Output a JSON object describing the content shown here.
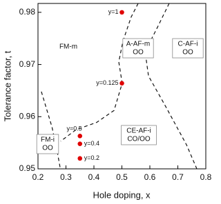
{
  "chart_data": {
    "type": "scatter",
    "xlabel": "Hole doping, x",
    "ylabel": "Tolerance factor, t",
    "xlim": [
      0.2,
      0.8
    ],
    "xticks": [
      0.2,
      0.3,
      0.4,
      0.5,
      0.6,
      0.7,
      0.8
    ],
    "ylim": [
      0.95,
      0.9817
    ],
    "yticks": [
      0.95,
      0.96,
      0.97,
      0.98
    ],
    "series": [
      {
        "color": "#e00000",
        "x": [
          0.5,
          0.5,
          0.35,
          0.35,
          0.35
        ],
        "values": [
          0.98,
          0.9664,
          0.9563,
          0.9548,
          0.952
        ],
        "labels": [
          "y=1",
          "y=0.125",
          "y=0.5",
          "y=0.4",
          "y=0.2"
        ]
      }
    ],
    "boundaries": [
      {
        "x": [
          0.212,
          0.25,
          0.27,
          0.28
        ],
        "values": [
          0.9648,
          0.958,
          0.953,
          0.95
        ]
      },
      {
        "x": [
          0.558,
          0.533,
          0.504,
          0.489,
          0.501,
          0.472,
          0.41,
          0.336,
          0.281
        ],
        "values": [
          0.9817,
          0.9791,
          0.9745,
          0.9705,
          0.9664,
          0.9612,
          0.9589,
          0.9575,
          0.9553
        ]
      },
      {
        "x": [
          0.669,
          0.627,
          0.583,
          0.595,
          0.657,
          0.731,
          0.768
        ],
        "values": [
          0.9817,
          0.9771,
          0.9725,
          0.9678,
          0.9619,
          0.9546,
          0.95
        ]
      }
    ],
    "phase_labels": [
      [
        "FM-m"
      ],
      [
        "A-AF-m",
        "OO"
      ],
      [
        "C-AF-i",
        "OO"
      ],
      [
        "FM-i",
        "OO"
      ],
      [
        "CE-AF-i",
        "CO/OO"
      ]
    ]
  }
}
